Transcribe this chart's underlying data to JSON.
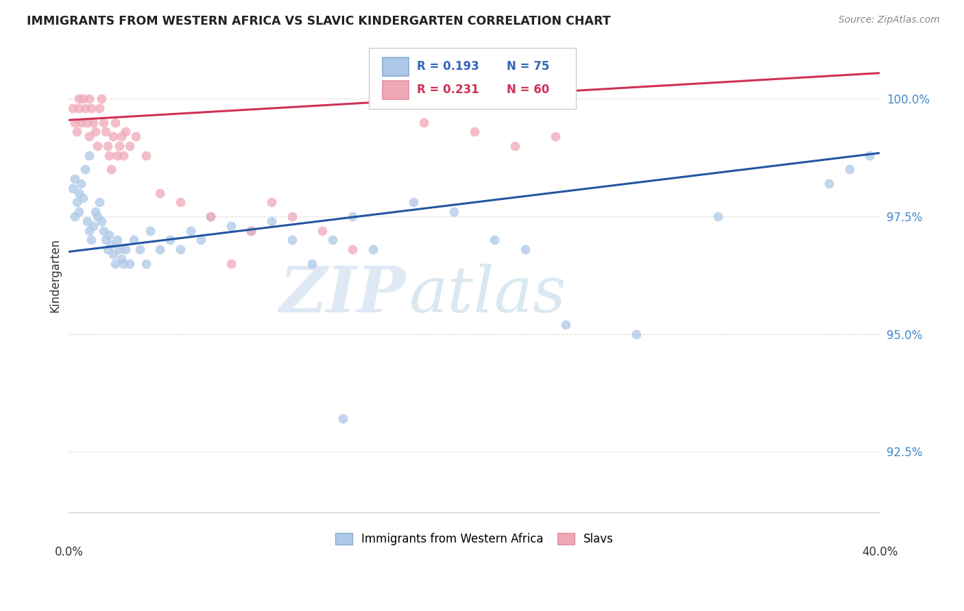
{
  "title": "IMMIGRANTS FROM WESTERN AFRICA VS SLAVIC KINDERGARTEN CORRELATION CHART",
  "source": "Source: ZipAtlas.com",
  "ylabel": "Kindergarten",
  "ytick_labels": [
    "92.5%",
    "95.0%",
    "97.5%",
    "100.0%"
  ],
  "ytick_values": [
    92.5,
    95.0,
    97.5,
    100.0
  ],
  "xlim": [
    0.0,
    40.0
  ],
  "ylim": [
    91.2,
    101.3
  ],
  "legend_blue_r": "R = 0.193",
  "legend_blue_n": "N = 75",
  "legend_pink_r": "R = 0.231",
  "legend_pink_n": "N = 60",
  "legend_label_blue": "Immigrants from Western Africa",
  "legend_label_pink": "Slavs",
  "blue_color": "#adc8e8",
  "pink_color": "#f0a8b8",
  "blue_line_color": "#2255a0",
  "pink_line_color": "#d03055",
  "marker_size": 100,
  "blue_points_x": [
    0.2,
    0.3,
    0.3,
    0.4,
    0.5,
    0.5,
    0.6,
    0.7,
    0.8,
    0.9,
    1.0,
    1.0,
    1.1,
    1.2,
    1.3,
    1.4,
    1.5,
    1.6,
    1.7,
    1.8,
    1.9,
    2.0,
    2.1,
    2.2,
    2.3,
    2.4,
    2.5,
    2.6,
    2.7,
    2.8,
    3.0,
    3.2,
    3.5,
    3.8,
    4.0,
    4.5,
    5.0,
    5.5,
    6.0,
    6.5,
    7.0,
    8.0,
    9.0,
    10.0,
    11.0,
    12.0,
    13.0,
    14.0,
    15.0,
    17.0,
    19.0,
    21.0,
    22.5,
    24.5,
    28.0,
    32.0,
    37.5,
    38.5,
    39.5
  ],
  "blue_points_y": [
    98.1,
    98.3,
    97.5,
    97.8,
    97.6,
    98.0,
    98.2,
    97.9,
    98.5,
    97.4,
    98.8,
    97.2,
    97.0,
    97.3,
    97.6,
    97.5,
    97.8,
    97.4,
    97.2,
    97.0,
    96.8,
    97.1,
    96.9,
    96.7,
    96.5,
    97.0,
    96.8,
    96.6,
    96.5,
    96.8,
    96.5,
    97.0,
    96.8,
    96.5,
    97.2,
    96.8,
    97.0,
    96.8,
    97.2,
    97.0,
    97.5,
    97.3,
    97.2,
    97.4,
    97.0,
    96.5,
    97.0,
    97.5,
    96.8,
    97.8,
    97.6,
    97.0,
    96.8,
    95.2,
    95.0,
    97.5,
    98.2,
    98.5,
    98.8
  ],
  "blue_outlier_x": [
    13.5
  ],
  "blue_outlier_y": [
    93.2
  ],
  "pink_points_x": [
    0.2,
    0.3,
    0.4,
    0.5,
    0.5,
    0.6,
    0.7,
    0.8,
    0.9,
    1.0,
    1.0,
    1.1,
    1.2,
    1.3,
    1.4,
    1.5,
    1.6,
    1.7,
    1.8,
    1.9,
    2.0,
    2.1,
    2.2,
    2.3,
    2.4,
    2.5,
    2.6,
    2.7,
    2.8,
    3.0,
    3.3,
    3.8,
    4.5,
    5.5,
    7.0,
    8.0,
    9.0,
    10.0,
    11.0,
    12.5,
    14.0,
    17.5,
    20.0,
    22.0,
    24.0
  ],
  "pink_points_y": [
    99.8,
    99.5,
    99.3,
    100.0,
    99.8,
    99.5,
    100.0,
    99.8,
    99.5,
    99.2,
    100.0,
    99.8,
    99.5,
    99.3,
    99.0,
    99.8,
    100.0,
    99.5,
    99.3,
    99.0,
    98.8,
    98.5,
    99.2,
    99.5,
    98.8,
    99.0,
    99.2,
    98.8,
    99.3,
    99.0,
    99.2,
    98.8,
    98.0,
    97.8,
    97.5,
    96.5,
    97.2,
    97.8,
    97.5,
    97.2,
    96.8,
    99.5,
    99.3,
    99.0,
    99.2
  ],
  "blue_trend_x": [
    0.0,
    40.0
  ],
  "blue_trend_y": [
    96.75,
    98.85
  ],
  "pink_trend_x": [
    0.0,
    40.0
  ],
  "pink_trend_y": [
    99.55,
    100.55
  ],
  "watermark_zip": "ZIP",
  "watermark_atlas": "atlas",
  "bg_color": "#ffffff",
  "grid_color": "#dddddd",
  "ytick_color": "#4488cc"
}
